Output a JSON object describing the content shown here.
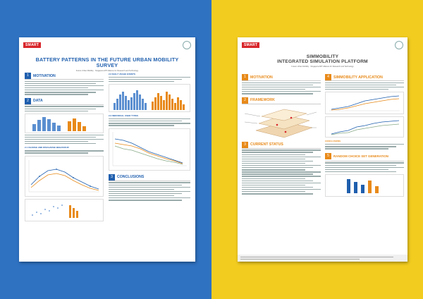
{
  "left_poster": {
    "logo_label": "SMART",
    "title": "BATTERY PATTERNS IN THE FUTURE URBAN MOBILITY SURVEY",
    "authors": "Future Urban Mobility  ·  Singapore-MIT Alliance for Research and Technology",
    "sections": [
      {
        "num": "1",
        "title": "MOTIVATION"
      },
      {
        "num": "2",
        "title": "DATA"
      },
      {
        "num": "3",
        "title": "CONCLUSIONS"
      }
    ],
    "right_sections": [
      "2.2 DAILY USAGE EVENTS",
      "2.3 INDIVIDUAL USER TYPES"
    ],
    "sub_heading": "2.1 CHARGE AND DISCHARGE BEHAVIOUR"
  },
  "right_poster": {
    "logo_label": "SMART",
    "title_line1": "SIMMOBILITY",
    "title_line2": "INTEGRATED SIMULATION PLATFORM",
    "authors": "Future Urban Mobility  ·  Singapore-MIT Alliance for Research and Technology",
    "left_sections": [
      {
        "num": "1",
        "title": "MOTIVATION"
      },
      {
        "num": "2",
        "title": "FRAMEWORK"
      },
      {
        "num": "3",
        "title": "CURRENT STATUS"
      }
    ],
    "right_sections": [
      {
        "num": "4",
        "title": "SIMMOBILITY APPLICATION"
      },
      {
        "num": "5",
        "title": "RANDOM CHOICE SET GENERATION"
      }
    ],
    "conclusions_label": "CONCLUSIONS"
  },
  "colors": {
    "left_bg": "#2f72c2",
    "right_bg": "#f2cc1f",
    "accent_blue": "#1f5fae",
    "accent_orange": "#e88a1a",
    "smart_red": "#d8262b"
  }
}
